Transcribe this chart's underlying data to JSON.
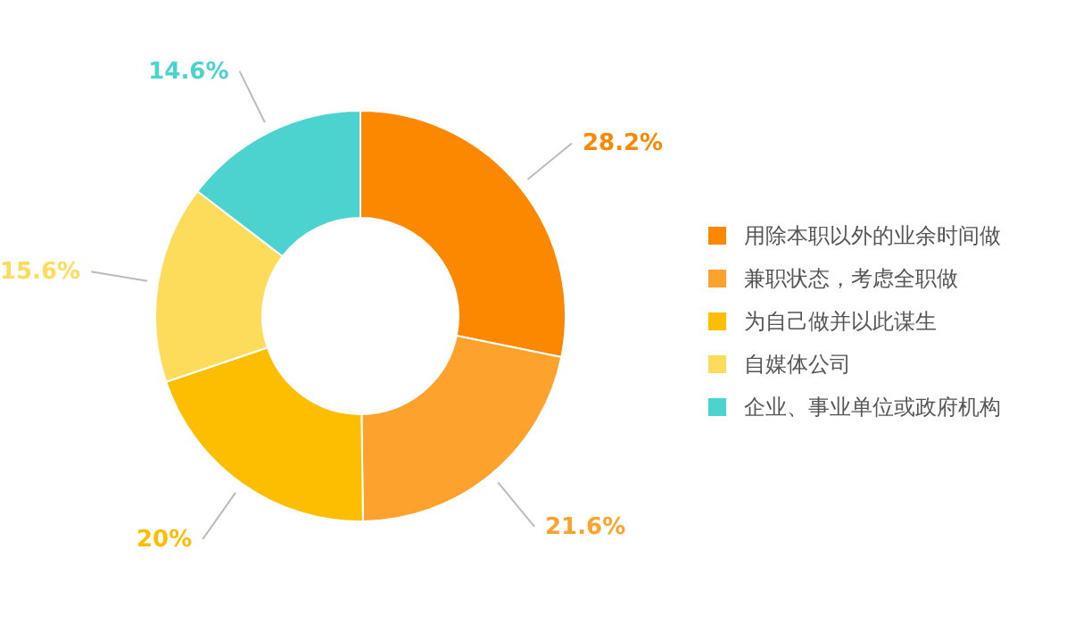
{
  "chart_data": {
    "type": "donut",
    "categories": [
      "用除本职以外的业余时间做",
      "兼职状态，考虑全职做",
      "为自己做并以此谋生",
      "自媒体公司",
      "企业、事业单位或政府机构"
    ],
    "values": [
      28.2,
      21.6,
      20,
      15.6,
      14.6
    ],
    "value_labels": [
      "28.2%",
      "21.6%",
      "20%",
      "15.6%",
      "14.6%"
    ],
    "colors": [
      "#fc8800",
      "#fda22c",
      "#fdbd00",
      "#fddc5c",
      "#4cd2cf"
    ],
    "legend": "right"
  }
}
